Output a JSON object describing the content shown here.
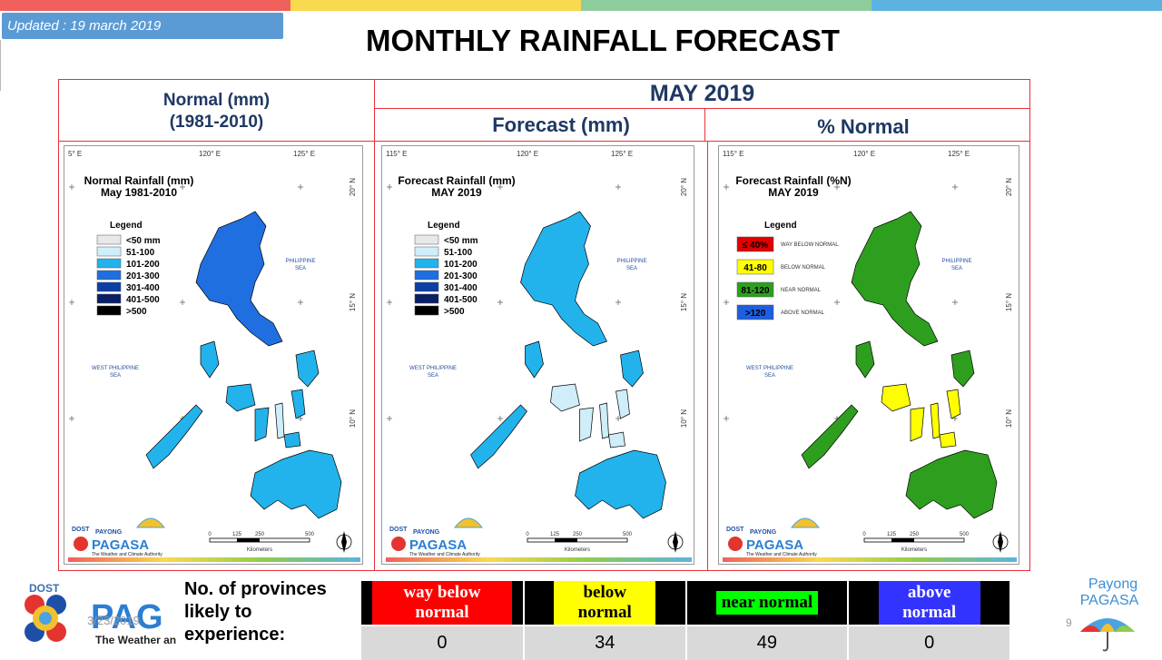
{
  "header": {
    "updated": "Updated : 19 march 2019",
    "title": "MONTHLY RAINFALL FORECAST",
    "month": "MAY 2019"
  },
  "columns": [
    {
      "title_line1": "Normal (mm)",
      "title_line2": "(1981-2010)"
    },
    {
      "title": "Forecast (mm)"
    },
    {
      "title": "% Normal"
    }
  ],
  "maps": [
    {
      "title": "Normal Rainfall (mm)",
      "subtitle": "May 1981-2010",
      "lon_labels": [
        "5° E",
        "120° E",
        "125° E"
      ],
      "lat_labels": [
        "20° N",
        "15° N",
        "10° N"
      ],
      "legend_title": "Legend",
      "legend": [
        {
          "label": "<50 mm",
          "color": "#e8e8e8"
        },
        {
          "label": "51-100",
          "color": "#cfeefa"
        },
        {
          "label": "101-200",
          "color": "#22b3ec"
        },
        {
          "label": "201-300",
          "color": "#1f6fe0"
        },
        {
          "label": "301-400",
          "color": "#0b3ea6"
        },
        {
          "label": "401-500",
          "color": "#0a1f66"
        },
        {
          "label": ">500",
          "color": "#000000"
        }
      ],
      "sea_ph": [
        "PHILIPPINE",
        "SEA"
      ],
      "sea_wps": [
        "WEST PHILIPPINE",
        "SEA"
      ],
      "scale": [
        "0",
        "125",
        "250",
        "500"
      ],
      "scale_unit": "Kilometers"
    },
    {
      "title": "Forecast Rainfall (mm)",
      "subtitle": "MAY 2019",
      "lon_labels": [
        "115° E",
        "120° E",
        "125° E"
      ],
      "lat_labels": [
        "20° N",
        "15° N",
        "10° N"
      ],
      "legend_title": "Legend",
      "legend": [
        {
          "label": "<50 mm",
          "color": "#e8e8e8"
        },
        {
          "label": "51-100",
          "color": "#cfeefa"
        },
        {
          "label": "101-200",
          "color": "#22b3ec"
        },
        {
          "label": "201-300",
          "color": "#1f6fe0"
        },
        {
          "label": "301-400",
          "color": "#0b3ea6"
        },
        {
          "label": "401-500",
          "color": "#0a1f66"
        },
        {
          "label": ">500",
          "color": "#000000"
        }
      ],
      "sea_ph": [
        "PHILIPPINE",
        "SEA"
      ],
      "sea_wps": [
        "WEST PHILIPPINE",
        "SEA"
      ],
      "scale": [
        "0",
        "125",
        "250",
        "500"
      ],
      "scale_unit": "Kilometers"
    },
    {
      "title": "Forecast Rainfall (%N)",
      "subtitle": "MAY 2019",
      "lon_labels": [
        "115° E",
        "120° E",
        "125° E"
      ],
      "lat_labels": [
        "20° N",
        "15° N",
        "10° N"
      ],
      "legend_title": "Legend",
      "legend": [
        {
          "label": "≤ 40%",
          "desc": "WAY BELOW NORMAL",
          "color": "#e00000"
        },
        {
          "label": "41-80",
          "desc": "BELOW NORMAL",
          "color": "#ffff00"
        },
        {
          "label": "81-120",
          "desc": "NEAR NORMAL",
          "color": "#2e9e1e"
        },
        {
          "label": ">120",
          "desc": "ABOVE NORMAL",
          "color": "#1e5ee0"
        }
      ],
      "sea_ph": [
        "PHILIPPINE",
        "SEA"
      ],
      "sea_wps": [
        "WEST PHILIPPINE",
        "SEA"
      ],
      "scale": [
        "0",
        "125",
        "250",
        "500"
      ],
      "scale_unit": "Kilometers"
    }
  ],
  "logo": {
    "dost": "DOST",
    "payong": "PAYONG",
    "pagasa": "PAGASA",
    "tagline": "The Weather and Climate Authority"
  },
  "bottom": {
    "label_line1": "No. of provinces",
    "label_line2": "likely  to",
    "label_line3": "experience:",
    "bottom_logo_text": "PAG",
    "bottom_tagline": "The Weather an",
    "date": "3/23/2019",
    "page": "9",
    "categories": [
      {
        "label": "way below normal",
        "value": "0"
      },
      {
        "label": "below normal",
        "value": "34"
      },
      {
        "label": "near normal",
        "value": "49"
      },
      {
        "label": "above normal",
        "value": "0"
      }
    ],
    "payong_line1": "Payong",
    "payong_line2": "PAGASA"
  },
  "colors": {
    "topbar": [
      "#f0605d",
      "#f9d950",
      "#8fcc9c",
      "#5bb4e0"
    ],
    "frame": "#e8313b",
    "header_text": "#1f3864"
  }
}
